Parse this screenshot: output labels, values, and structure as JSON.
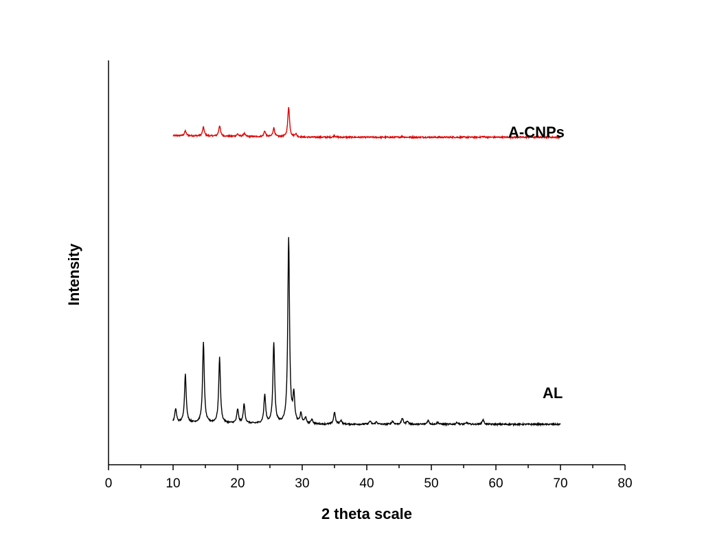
{
  "chart_data": {
    "type": "line",
    "title": "",
    "xlabel": "2 theta scale",
    "ylabel": "Intensity",
    "xlim": [
      0,
      80
    ],
    "x_ticks": [
      0,
      10,
      20,
      30,
      40,
      50,
      60,
      70,
      80
    ],
    "x_tick_labels": [
      "0",
      "10",
      "20",
      "30",
      "40",
      "50",
      "60",
      "70",
      "80"
    ],
    "yaxis_ticks_shown": false,
    "grid": false,
    "legend": "inline labels",
    "series": [
      {
        "name": "A-CNPs",
        "color": "#e00000",
        "baseline": 0.81,
        "peaks": [
          [
            11.9,
            0.012
          ],
          [
            14.7,
            0.022
          ],
          [
            17.2,
            0.026
          ],
          [
            20.0,
            0.006
          ],
          [
            21.0,
            0.008
          ],
          [
            24.2,
            0.014
          ],
          [
            25.6,
            0.022
          ],
          [
            27.9,
            0.075
          ],
          [
            29.0,
            0.008
          ],
          [
            35.0,
            0.004
          ],
          [
            45.5,
            0.002
          ],
          [
            58.0,
            0.002
          ]
        ]
      },
      {
        "name": "AL",
        "color": "#000000",
        "baseline": 0.1,
        "peaks": [
          [
            10.4,
            0.034
          ],
          [
            11.9,
            0.12
          ],
          [
            14.7,
            0.198
          ],
          [
            17.2,
            0.162
          ],
          [
            20.0,
            0.034
          ],
          [
            21.0,
            0.047
          ],
          [
            24.2,
            0.07
          ],
          [
            25.6,
            0.2
          ],
          [
            27.9,
            0.46
          ],
          [
            28.7,
            0.07
          ],
          [
            29.8,
            0.025
          ],
          [
            30.5,
            0.015
          ],
          [
            31.5,
            0.012
          ],
          [
            35.0,
            0.03
          ],
          [
            36.0,
            0.01
          ],
          [
            40.5,
            0.008
          ],
          [
            41.5,
            0.006
          ],
          [
            44.0,
            0.008
          ],
          [
            45.5,
            0.015
          ],
          [
            46.3,
            0.008
          ],
          [
            49.5,
            0.01
          ],
          [
            51.0,
            0.005
          ],
          [
            54.0,
            0.005
          ],
          [
            55.5,
            0.004
          ],
          [
            58.0,
            0.012
          ]
        ]
      }
    ]
  }
}
